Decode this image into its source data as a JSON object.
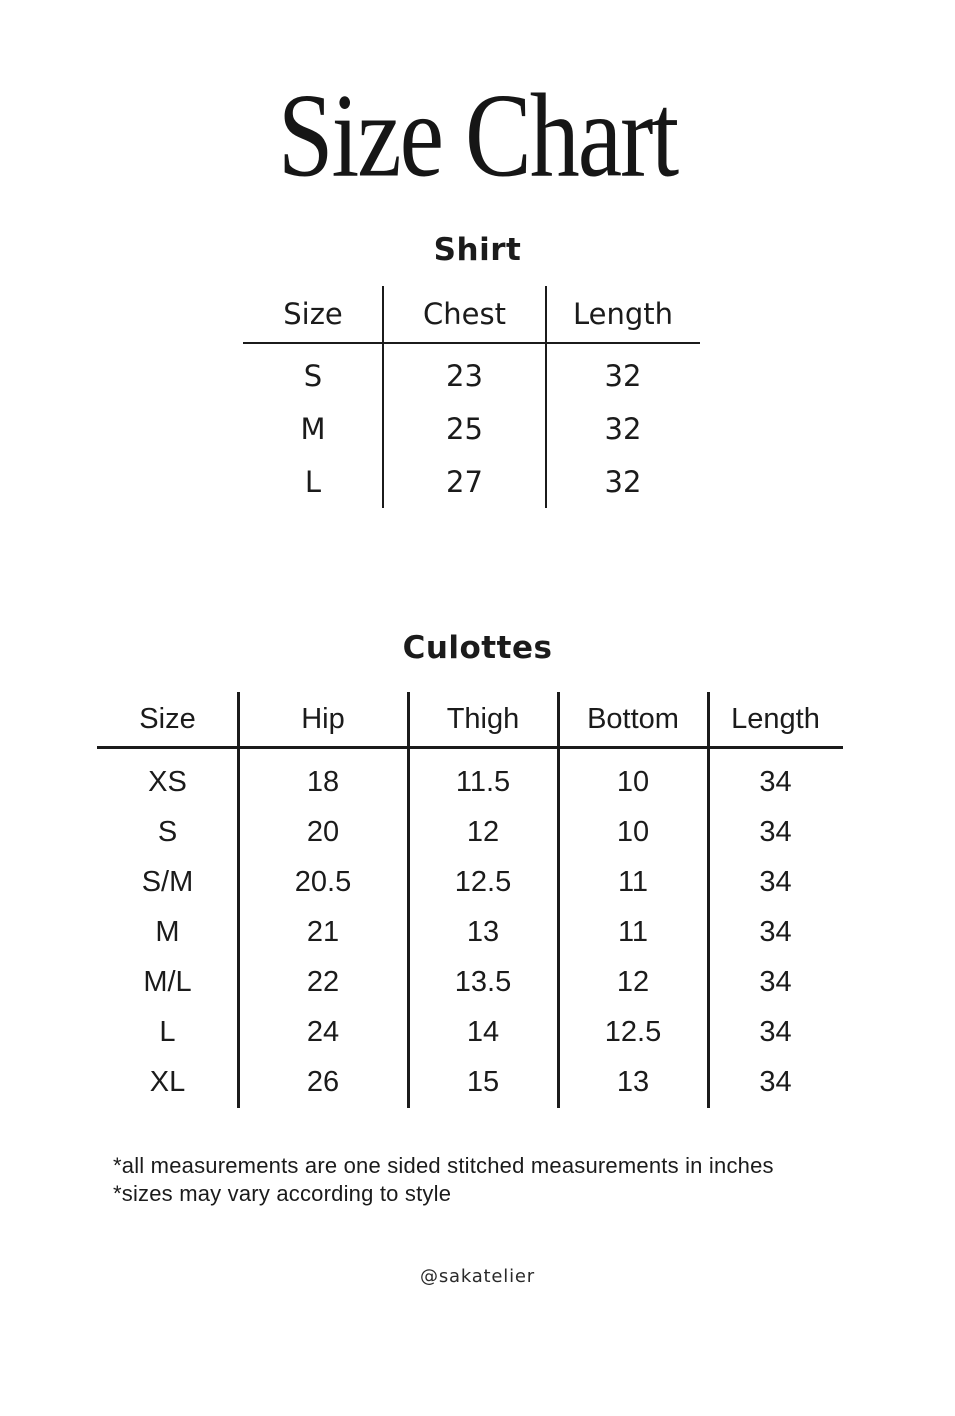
{
  "colors": {
    "background": "#ffffff",
    "text": "#1b1b1b",
    "line": "#1b1b1b"
  },
  "page": {
    "title": "Size Chart",
    "handle": "@sakatelier",
    "footnotes": [
      "*all measurements are one sided stitched measurements in inches",
      "*sizes may vary according to style"
    ]
  },
  "shirt": {
    "heading": "Shirt",
    "columns": [
      "Size",
      "Chest",
      "Length"
    ],
    "rows": [
      [
        "S",
        "23",
        "32"
      ],
      [
        "M",
        "25",
        "32"
      ],
      [
        "L",
        "27",
        "32"
      ]
    ]
  },
  "culottes": {
    "heading": "Culottes",
    "columns": [
      "Size",
      "Hip",
      "Thigh",
      "Bottom",
      "Length"
    ],
    "rows": [
      [
        "XS",
        "18",
        "11.5",
        "10",
        "34"
      ],
      [
        "S",
        "20",
        "12",
        "10",
        "34"
      ],
      [
        "S/M",
        "20.5",
        "12.5",
        "11",
        "34"
      ],
      [
        "M",
        "21",
        "13",
        "11",
        "34"
      ],
      [
        "M/L",
        "22",
        "13.5",
        "12",
        "34"
      ],
      [
        "L",
        "24",
        "14",
        "12.5",
        "34"
      ],
      [
        "XL",
        "26",
        "15",
        "13",
        "34"
      ]
    ]
  }
}
